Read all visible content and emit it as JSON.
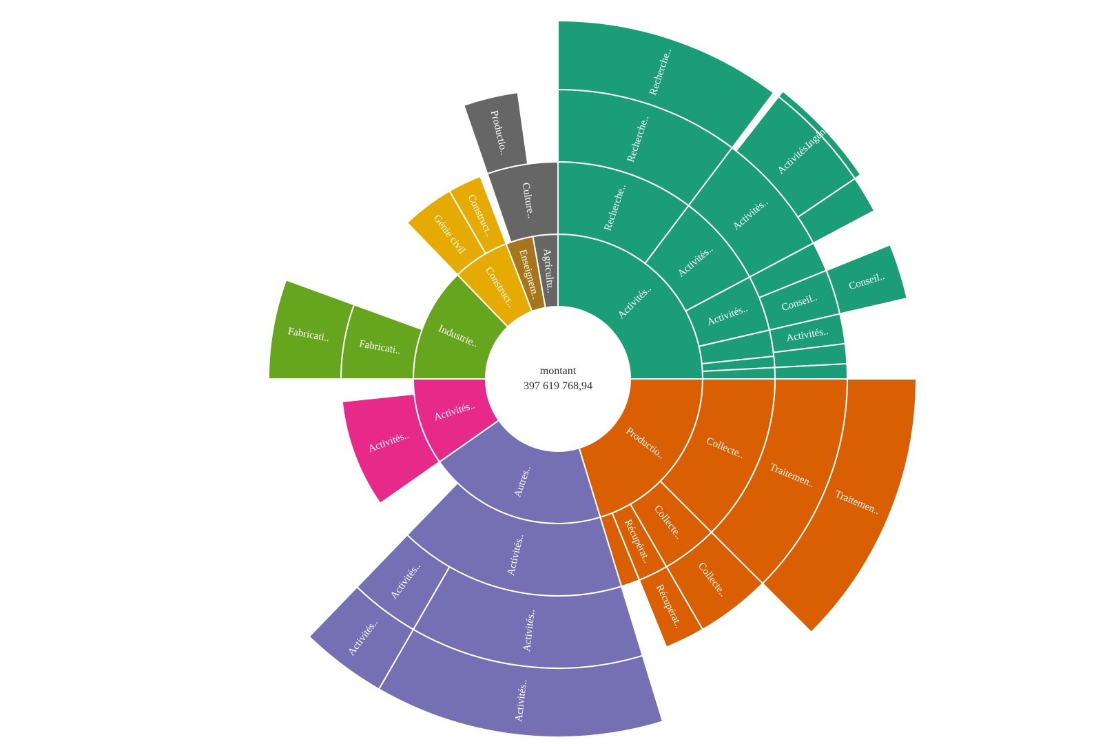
{
  "chart_data": {
    "type": "sunburst",
    "center": {
      "label": "montant",
      "value": "397 619 768,94"
    },
    "colors": {
      "teal": "#1b9e77",
      "orange": "#d95f02",
      "purple": "#7570b3",
      "pink": "#e7298a",
      "green": "#66a61e",
      "yellow": "#e6ab02",
      "brown": "#a6761d",
      "grey": "#666666"
    },
    "segments": [
      {
        "ring": 1,
        "a0": 0,
        "a1": 90,
        "color": "teal",
        "label": "Activités.."
      },
      {
        "ring": 2,
        "a0": 0,
        "a1": 37,
        "color": "teal",
        "label": "Recherche.."
      },
      {
        "ring": 3,
        "a0": 0,
        "a1": 37,
        "color": "teal",
        "label": "Recherche.."
      },
      {
        "ring": 4,
        "a0": 0,
        "a1": 37,
        "color": "teal",
        "label": "Recherche.."
      },
      {
        "ring": 2,
        "a0": 37,
        "a1": 62,
        "color": "teal",
        "label": "Activités.."
      },
      {
        "ring": 3,
        "a0": 37,
        "a1": 62,
        "color": "teal",
        "label": "Activités.."
      },
      {
        "ring": 4,
        "a0": 38,
        "a1": 56,
        "color": "teal",
        "label": "Activités.."
      },
      {
        "ring": 5,
        "a0": 38,
        "a1": 56,
        "color": "teal",
        "label": "Ingénieri.."
      },
      {
        "ring": 4,
        "a0": 56,
        "a1": 62,
        "color": "teal",
        "label": ""
      },
      {
        "ring": 2,
        "a0": 62,
        "a1": 77,
        "color": "teal",
        "label": "Activités.."
      },
      {
        "ring": 3,
        "a0": 62,
        "a1": 68,
        "color": "teal",
        "label": ""
      },
      {
        "ring": 3,
        "a0": 68,
        "a1": 77,
        "color": "teal",
        "label": "Conseil.."
      },
      {
        "ring": 4,
        "a0": 68,
        "a1": 77,
        "color": "teal",
        "label": "Conseil.."
      },
      {
        "ring": 3,
        "a0": 77,
        "a1": 83,
        "color": "teal",
        "label": "Activités.."
      },
      {
        "ring": 2,
        "a0": 77,
        "a1": 84,
        "color": "teal",
        "label": ""
      },
      {
        "ring": 3,
        "a0": 83,
        "a1": 87,
        "color": "teal",
        "label": ""
      },
      {
        "ring": 2,
        "a0": 84,
        "a1": 87,
        "color": "teal",
        "label": ""
      },
      {
        "ring": 2,
        "a0": 87,
        "a1": 90,
        "color": "teal",
        "label": ""
      },
      {
        "ring": 3,
        "a0": 87,
        "a1": 90,
        "color": "teal",
        "label": ""
      },
      {
        "ring": 1,
        "a0": 90,
        "a1": 163,
        "color": "orange",
        "label": "Productio.."
      },
      {
        "ring": 2,
        "a0": 90,
        "a1": 135,
        "color": "orange",
        "label": "Collecte.."
      },
      {
        "ring": 3,
        "a0": 90,
        "a1": 135,
        "color": "orange",
        "label": "Traitemen.."
      },
      {
        "ring": 4,
        "a0": 90,
        "a1": 135,
        "color": "orange",
        "label": "Traitemen.."
      },
      {
        "ring": 2,
        "a0": 135,
        "a1": 150,
        "color": "orange",
        "label": "Collecte.."
      },
      {
        "ring": 3,
        "a0": 135,
        "a1": 150,
        "color": "orange",
        "label": "Collecte.."
      },
      {
        "ring": 2,
        "a0": 150,
        "a1": 158,
        "color": "orange",
        "label": "Récupérat.."
      },
      {
        "ring": 3,
        "a0": 150,
        "a1": 158,
        "color": "orange",
        "label": "Récupérat.."
      },
      {
        "ring": 2,
        "a0": 158,
        "a1": 163,
        "color": "orange",
        "label": ""
      },
      {
        "ring": 1,
        "a0": 163,
        "a1": 235,
        "color": "purple",
        "label": "Autres.."
      },
      {
        "ring": 2,
        "a0": 163,
        "a1": 224,
        "color": "purple",
        "label": "Activités.."
      },
      {
        "ring": 3,
        "a0": 163,
        "a1": 210,
        "color": "purple",
        "label": "Activités.."
      },
      {
        "ring": 4,
        "a0": 163,
        "a1": 210,
        "color": "purple",
        "label": "Activités.."
      },
      {
        "ring": 3,
        "a0": 210,
        "a1": 224,
        "color": "purple",
        "label": "Activités.."
      },
      {
        "ring": 4,
        "a0": 210,
        "a1": 224,
        "color": "purple",
        "label": "Activités.."
      },
      {
        "ring": 1,
        "a0": 235,
        "a1": 270,
        "color": "pink",
        "label": "Activités.."
      },
      {
        "ring": 2,
        "a0": 235,
        "a1": 264,
        "color": "pink",
        "label": "Activités.."
      },
      {
        "ring": 1,
        "a0": 270,
        "a1": 316,
        "color": "green",
        "label": "Industrie.."
      },
      {
        "ring": 2,
        "a0": 270,
        "a1": 290,
        "color": "green",
        "label": "Fabricati.."
      },
      {
        "ring": 3,
        "a0": 270,
        "a1": 290,
        "color": "green",
        "label": "Fabricati.."
      },
      {
        "ring": 1,
        "a0": 316,
        "a1": 339,
        "color": "yellow",
        "label": "Construct.."
      },
      {
        "ring": 2,
        "a0": 316,
        "a1": 330,
        "color": "yellow",
        "label": "Génie civil"
      },
      {
        "ring": 2,
        "a0": 330,
        "a1": 339,
        "color": "yellow",
        "label": "Construct.."
      },
      {
        "ring": 1,
        "a0": 339,
        "a1": 350,
        "color": "brown",
        "label": "Enseignem.."
      },
      {
        "ring": 1,
        "a0": 350,
        "a1": 360,
        "color": "grey",
        "label": "Agricultu.."
      },
      {
        "ring": 2,
        "a0": 341,
        "a1": 360,
        "color": "grey",
        "label": "Culture.."
      },
      {
        "ring": 3,
        "a0": 341,
        "a1": 352,
        "color": "grey",
        "label": "Productio.."
      }
    ]
  }
}
